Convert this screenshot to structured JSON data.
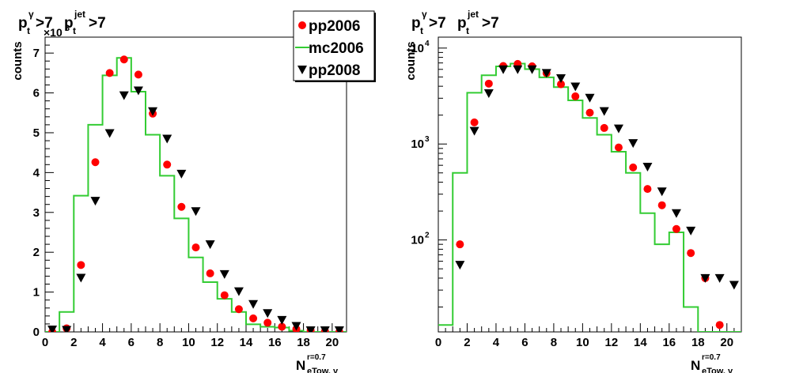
{
  "colors": {
    "pp2006": "#ff0000",
    "mc2006": "#33cc33",
    "pp2008": "#000000",
    "axis": "#000000",
    "background": "#ffffff"
  },
  "chart_data": [
    {
      "type": "scatter",
      "title_parts": [
        "p",
        "t",
        "γ",
        ">7 ",
        "p",
        "t",
        "jet",
        ">7"
      ],
      "ylabel": "counts",
      "xlabel_main": "N",
      "xlabel_sub": "eTow, γ",
      "xlabel_sup": "r=0.7",
      "exponent_label": "×10",
      "exponent_power": "3",
      "xlim": [
        0,
        21
      ],
      "ylim": [
        0,
        7400
      ],
      "y_scale": "linear",
      "x_ticks": [
        0,
        2,
        4,
        6,
        8,
        10,
        12,
        14,
        16,
        18,
        20
      ],
      "x_tick_labels": [
        "0",
        "2",
        "4",
        "6",
        "8",
        "10",
        "12",
        "14",
        "16",
        "18",
        "20"
      ],
      "y_ticks": [
        0,
        1000,
        2000,
        3000,
        4000,
        5000,
        6000,
        7000
      ],
      "y_tick_labels": [
        "0",
        "1",
        "2",
        "3",
        "4",
        "5",
        "6",
        "7"
      ],
      "legend": {
        "placement": "top-right",
        "entries": [
          {
            "key": "pp2006",
            "label": "pp2006",
            "marker": "circle"
          },
          {
            "key": "mc2006",
            "label": "mc2006",
            "marker": "line"
          },
          {
            "key": "pp2008",
            "label": "pp2008",
            "marker": "triangle-down"
          }
        ]
      },
      "series": [
        {
          "key": "mc2006",
          "name": "mc2006",
          "style": "step",
          "x": [
            0.5,
            1.5,
            2.5,
            3.5,
            4.5,
            5.5,
            6.5,
            7.5,
            8.5,
            9.5,
            10.5,
            11.5,
            12.5,
            13.5,
            14.5,
            15.5,
            16.5,
            17.5,
            18.5,
            19.5,
            20.5
          ],
          "y": [
            0,
            500,
            3420,
            5200,
            6440,
            6880,
            6030,
            4950,
            3920,
            2850,
            1870,
            1250,
            830,
            500,
            190,
            130,
            110,
            30,
            0,
            0,
            0
          ]
        },
        {
          "key": "pp2006",
          "name": "pp2006",
          "style": "circle",
          "x": [
            0.5,
            1.5,
            2.5,
            3.5,
            4.5,
            5.5,
            6.5,
            7.5,
            8.5,
            9.5,
            10.5,
            11.5,
            12.5,
            13.5,
            14.5,
            15.5,
            16.5,
            17.5,
            18.5,
            19.5,
            20.5
          ],
          "y": [
            0,
            90,
            1680,
            4260,
            6500,
            6840,
            6460,
            5480,
            4200,
            3140,
            2120,
            1470,
            920,
            570,
            340,
            230,
            130,
            70,
            40,
            15,
            0
          ]
        },
        {
          "key": "pp2008",
          "name": "pp2008",
          "style": "triangle-down",
          "x": [
            0.5,
            1.5,
            2.5,
            3.5,
            4.5,
            5.5,
            6.5,
            7.5,
            8.5,
            9.5,
            10.5,
            11.5,
            12.5,
            13.5,
            14.5,
            15.5,
            16.5,
            17.5,
            18.5,
            19.5,
            20.5
          ],
          "y": [
            60,
            50,
            1360,
            3290,
            4990,
            5940,
            6060,
            5540,
            4850,
            3970,
            3030,
            2200,
            1450,
            1020,
            700,
            470,
            300,
            150,
            40,
            40,
            40
          ]
        }
      ]
    },
    {
      "type": "scatter",
      "title_parts": [
        "p",
        "t",
        "γ",
        ">7 ",
        "p",
        "t",
        "jet",
        ">7"
      ],
      "ylabel": "counts",
      "xlabel_main": "N",
      "xlabel_sub": "eTow, γ",
      "xlabel_sup": "r=0.7",
      "xlim": [
        0,
        21
      ],
      "ylim": [
        11,
        13000
      ],
      "y_scale": "log",
      "x_ticks": [
        0,
        2,
        4,
        6,
        8,
        10,
        12,
        14,
        16,
        18,
        20
      ],
      "x_tick_labels": [
        "0",
        "2",
        "4",
        "6",
        "8",
        "10",
        "12",
        "14",
        "16",
        "18",
        "20"
      ],
      "y_major_ticks": [
        100,
        1000,
        10000
      ],
      "y_tick_base": "10",
      "y_tick_powers": [
        "2",
        "3",
        "4"
      ],
      "series": [
        {
          "key": "mc2006",
          "name": "mc2006",
          "style": "step",
          "x": [
            0.5,
            1.5,
            2.5,
            3.5,
            4.5,
            5.5,
            6.5,
            7.5,
            8.5,
            9.5,
            10.5,
            11.5,
            12.5,
            13.5,
            14.5,
            15.5,
            16.5,
            17.5,
            18.5,
            19.5,
            20.5
          ],
          "y": [
            13,
            500,
            3420,
            5200,
            6440,
            6880,
            6030,
            4950,
            3920,
            2850,
            1870,
            1250,
            830,
            500,
            190,
            90,
            120,
            20,
            0,
            0,
            0
          ]
        },
        {
          "key": "pp2006",
          "name": "pp2006",
          "style": "circle",
          "x": [
            1.5,
            2.5,
            3.5,
            4.5,
            5.5,
            6.5,
            7.5,
            8.5,
            9.5,
            10.5,
            11.5,
            12.5,
            13.5,
            14.5,
            15.5,
            16.5,
            17.5,
            18.5,
            19.5
          ],
          "y": [
            90,
            1680,
            4260,
            6500,
            6840,
            6460,
            5480,
            4200,
            3140,
            2120,
            1470,
            920,
            570,
            340,
            230,
            130,
            73,
            40,
            13
          ]
        },
        {
          "key": "pp2008",
          "name": "pp2008",
          "style": "triangle-down",
          "x": [
            1.5,
            2.5,
            3.5,
            4.5,
            5.5,
            6.5,
            7.5,
            8.5,
            9.5,
            10.5,
            11.5,
            12.5,
            13.5,
            14.5,
            15.5,
            16.5,
            17.5,
            18.5,
            19.5,
            20.5
          ],
          "y": [
            55,
            1370,
            3380,
            6000,
            6000,
            6000,
            5500,
            4850,
            3970,
            3030,
            2200,
            1450,
            1020,
            580,
            320,
            190,
            125,
            40,
            40,
            34
          ]
        }
      ]
    }
  ]
}
